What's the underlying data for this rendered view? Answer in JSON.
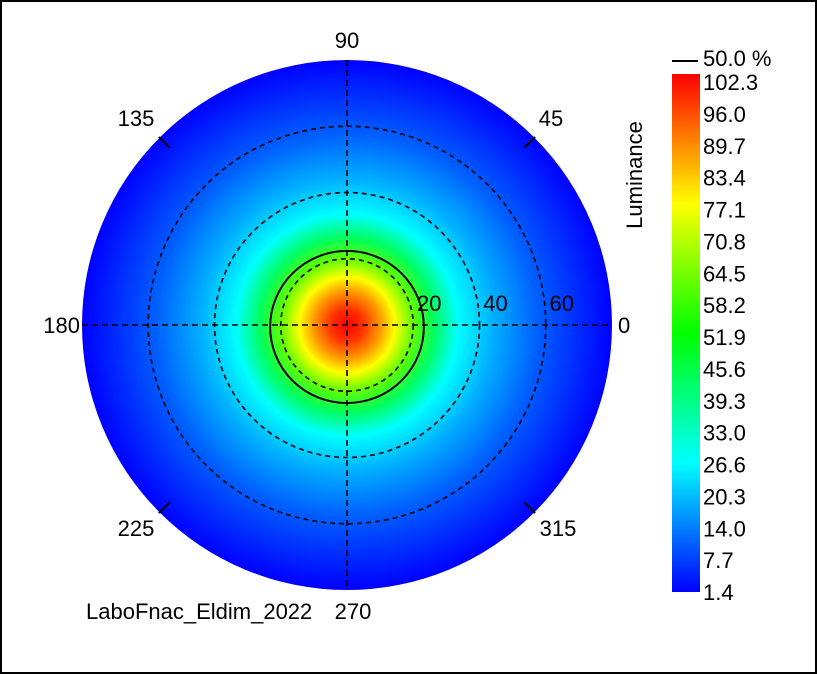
{
  "chart_data": {
    "type": "heatmap",
    "subtype": "polar",
    "colorbar_label": "Luminance",
    "contour_label": "50.0 %",
    "colorbar_ticks": [
      "102.3",
      "96.0",
      "89.7",
      "83.4",
      "77.1",
      "70.8",
      "64.5",
      "58.2",
      "51.9",
      "45.6",
      "39.3",
      "33.0",
      "26.6",
      "20.3",
      "14.0",
      "7.7",
      "1.4"
    ],
    "value_range": [
      1.4,
      102.3
    ],
    "angle_labels": [
      "90",
      "45",
      "0",
      "315",
      "270",
      "225",
      "180",
      "135"
    ],
    "angle_label_values": [
      90,
      45,
      0,
      315,
      270,
      225,
      180,
      135
    ],
    "radial_labels": [
      "20",
      "40",
      "60"
    ],
    "radial_values": [
      20,
      40,
      60
    ],
    "radial_max": 80,
    "grid": true,
    "center_value": 102.3,
    "edge_value": 2,
    "contour_level_fraction": 0.5,
    "colormap": [
      "#0000ff",
      "#00ffff",
      "#00ff00",
      "#ffff00",
      "#ff0000"
    ],
    "footer_text": "LaboFnac_Eldim_2022"
  }
}
